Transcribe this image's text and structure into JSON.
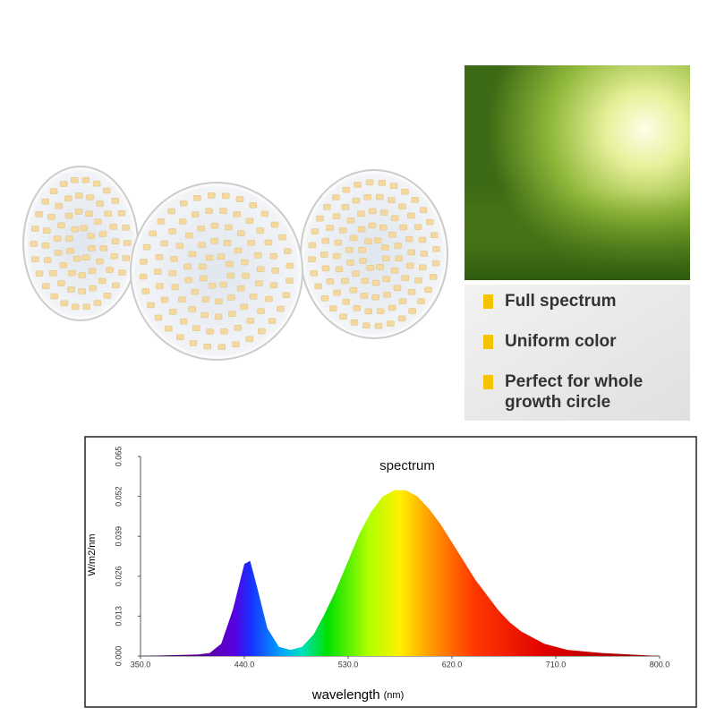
{
  "features": [
    {
      "lines": [
        "Full spectrum"
      ]
    },
    {
      "lines": [
        "Uniform color"
      ]
    },
    {
      "lines": [
        "Perfect for whole",
        "growth circle"
      ]
    }
  ],
  "chart_data": {
    "type": "area",
    "title": "spectrum",
    "xlabel": "wavelength",
    "xlabel_unit": "(nm)",
    "ylabel": "W/m2/nm",
    "x": [
      350,
      400,
      410,
      420,
      430,
      440,
      445,
      450,
      460,
      470,
      480,
      490,
      500,
      510,
      520,
      530,
      540,
      550,
      560,
      570,
      580,
      590,
      600,
      610,
      620,
      630,
      640,
      650,
      660,
      670,
      680,
      690,
      700,
      720,
      750,
      800
    ],
    "values": [
      0,
      0.0005,
      0.001,
      0.004,
      0.015,
      0.03,
      0.031,
      0.024,
      0.009,
      0.003,
      0.002,
      0.003,
      0.007,
      0.014,
      0.022,
      0.031,
      0.04,
      0.047,
      0.052,
      0.054,
      0.054,
      0.052,
      0.048,
      0.043,
      0.037,
      0.031,
      0.025,
      0.02,
      0.015,
      0.011,
      0.008,
      0.006,
      0.004,
      0.002,
      0.001,
      0
    ],
    "xlim": [
      350,
      800
    ],
    "xticks": [
      {
        "value": 350,
        "label": "350.0"
      },
      {
        "value": 440,
        "label": "440.0"
      },
      {
        "value": 530,
        "label": "530.0"
      },
      {
        "value": 620,
        "label": "620.0"
      },
      {
        "value": 710,
        "label": "710.0"
      },
      {
        "value": 800,
        "label": "800.0"
      }
    ],
    "ylim": [
      0,
      0.065
    ],
    "yticks": [
      {
        "value": 0,
        "label": "0.000"
      },
      0.013,
      0.026,
      0.039,
      0.052,
      0.065
    ]
  }
}
